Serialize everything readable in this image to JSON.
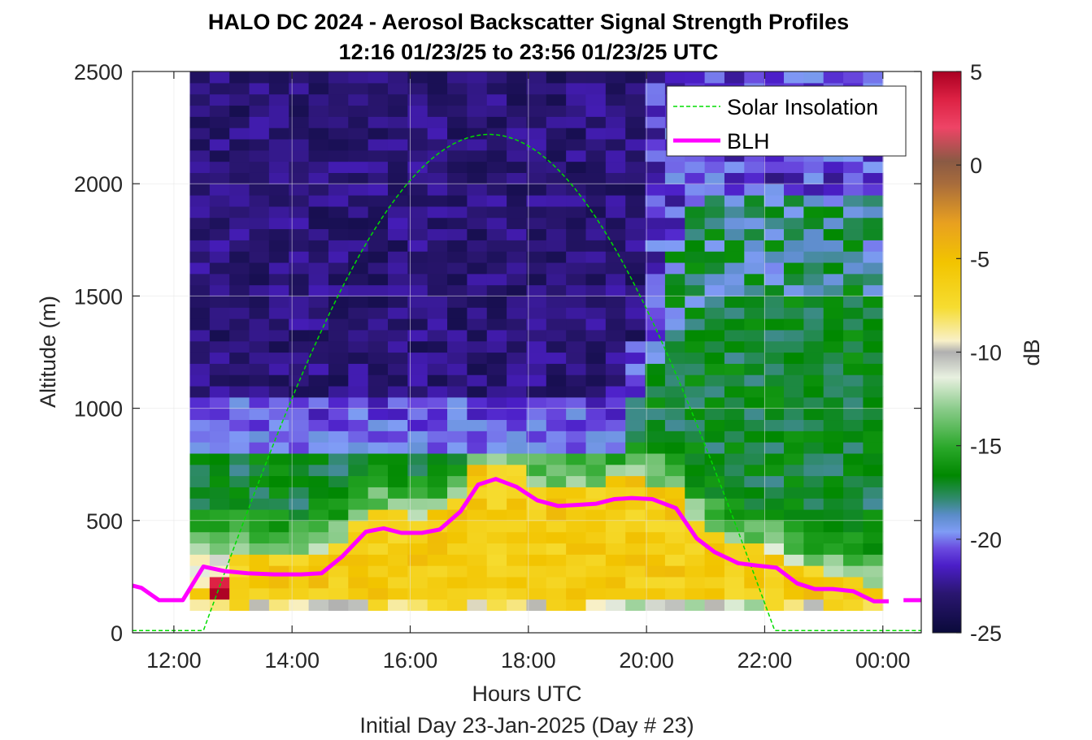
{
  "chart_data": {
    "type": "heatmap",
    "title": "HALO DC 2024 - Aerosol Backscatter Signal Strength Profiles",
    "subtitle": "12:16 01/23/25 to 23:56 01/23/25  UTC",
    "xlabel": "Hours UTC",
    "ylabel": "Altitude (m)",
    "footer": "Initial Day 23-Jan-2025 (Day # 23)",
    "xlim_hours": [
      11.3,
      24.65
    ],
    "ylim": [
      0,
      2500
    ],
    "x_ticks": [
      {
        "value": 12,
        "label": "12:00"
      },
      {
        "value": 14,
        "label": "14:00"
      },
      {
        "value": 16,
        "label": "16:00"
      },
      {
        "value": 18,
        "label": "18:00"
      },
      {
        "value": 20,
        "label": "20:00"
      },
      {
        "value": 22,
        "label": "22:00"
      },
      {
        "value": 24,
        "label": "00:00"
      }
    ],
    "y_ticks": [
      {
        "value": 0,
        "label": "0"
      },
      {
        "value": 500,
        "label": "500"
      },
      {
        "value": 1000,
        "label": "1000"
      },
      {
        "value": 1500,
        "label": "1500"
      },
      {
        "value": 2000,
        "label": "2000"
      },
      {
        "value": 2500,
        "label": "2500"
      }
    ],
    "grid": true,
    "colorbar": {
      "label": "dB",
      "range": [
        -25,
        5
      ],
      "ticks": [
        {
          "value": 5,
          "label": "5"
        },
        {
          "value": 0,
          "label": "0"
        },
        {
          "value": -5,
          "label": "-5"
        },
        {
          "value": -10,
          "label": "-10"
        },
        {
          "value": -15,
          "label": "-15"
        },
        {
          "value": -20,
          "label": "-20"
        },
        {
          "value": -25,
          "label": "-25"
        }
      ]
    },
    "heatmap": {
      "x_start_hours": 12.27,
      "x_end_hours": 24.0,
      "y_start_m": 100,
      "y_end_m": 2500,
      "cols": 35,
      "rows": 48
    },
    "legend": {
      "placement": "top-right",
      "entries": [
        {
          "name": "Solar Insolation",
          "color": "#00cc00",
          "style": "dashed"
        },
        {
          "name": "BLH",
          "color": "#ff00ff",
          "style": "solid"
        }
      ]
    },
    "blh": {
      "x": [
        11.3,
        11.45,
        11.75,
        12.15,
        12.5,
        12.85,
        13.25,
        13.7,
        14.15,
        14.5,
        14.85,
        15.25,
        15.55,
        15.85,
        16.2,
        16.5,
        16.85,
        17.15,
        17.45,
        17.8,
        18.15,
        18.5,
        18.85,
        19.15,
        19.45,
        19.75,
        20.1,
        20.5,
        20.85,
        21.15,
        21.55,
        21.85,
        22.2,
        22.55,
        22.85,
        23.15,
        23.5,
        23.85,
        24.1
      ],
      "y": [
        210,
        200,
        145,
        145,
        295,
        275,
        265,
        260,
        260,
        265,
        340,
        450,
        465,
        445,
        445,
        460,
        540,
        660,
        685,
        650,
        590,
        565,
        570,
        575,
        595,
        600,
        595,
        555,
        420,
        360,
        310,
        300,
        290,
        220,
        195,
        195,
        185,
        140,
        140
      ]
    },
    "blh_after": {
      "x": [
        24.35,
        24.65
      ],
      "y": [
        145,
        145
      ]
    },
    "solar": {
      "peak_hour": 17.33,
      "peak_m": 2220,
      "rise_hour": 12.5,
      "set_hour": 22.17,
      "baseline_m": 10
    }
  }
}
